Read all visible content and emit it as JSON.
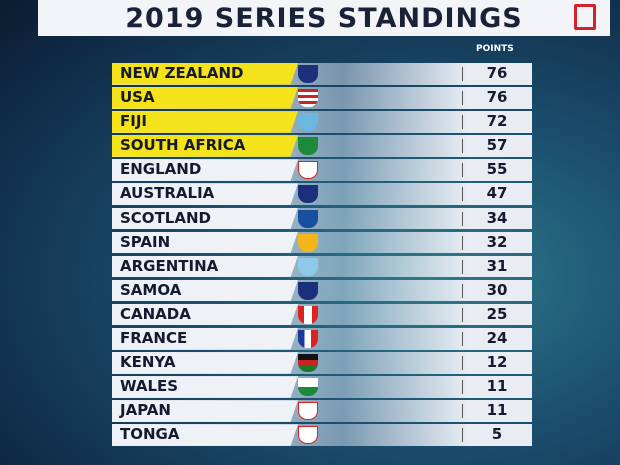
{
  "title": "2019 SERIES STANDINGS",
  "table": {
    "header": "POINTS",
    "rows": [
      [
        "NEW ZEALAND",
        76
      ],
      [
        "USA",
        76
      ],
      [
        "FIJI",
        72
      ],
      [
        "SOUTH AFRICA",
        57
      ],
      [
        "ENGLAND",
        55
      ],
      [
        "AUSTRALIA",
        47
      ],
      [
        "SCOTLAND",
        34
      ],
      [
        "SPAIN",
        32
      ],
      [
        "ARGENTINA",
        31
      ],
      [
        "SAMOA",
        30
      ],
      [
        "CANADA",
        25
      ],
      [
        "FRANCE",
        24
      ],
      [
        "KENYA",
        12
      ],
      [
        "WALES",
        11
      ],
      [
        "JAPAN",
        11
      ],
      [
        "TONGA",
        5
      ]
    ]
  }
}
